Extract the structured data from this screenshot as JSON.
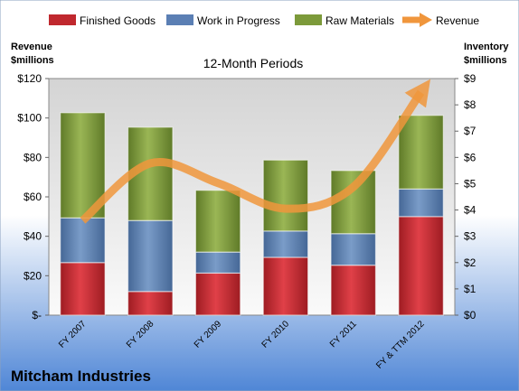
{
  "chart_data": {
    "type": "bar",
    "title": "12-Month Periods",
    "company": "Mitcham Industries",
    "left_axis_label": [
      "Revenue",
      "$millions"
    ],
    "right_axis_label": [
      "Inventory",
      "$millions"
    ],
    "categories": [
      "FY 2007",
      "FY 2008",
      "FY 2009",
      "FY 2010",
      "FY 2011",
      "FY & TTM 2012"
    ],
    "stacked": true,
    "series": [
      {
        "name": "Finished Goods",
        "color": "#c0282e",
        "axis": "right",
        "values": [
          2.0,
          0.9,
          1.6,
          2.2,
          1.9,
          3.75
        ]
      },
      {
        "name": "Work in Progress",
        "color": "#5b7fb4",
        "axis": "right",
        "values": [
          1.7,
          2.7,
          0.8,
          1.0,
          1.2,
          1.05
        ]
      },
      {
        "name": "Raw Materials",
        "color": "#7c9a3a",
        "axis": "right",
        "values": [
          4.0,
          3.55,
          2.35,
          2.7,
          2.4,
          2.8
        ]
      }
    ],
    "line_series": {
      "name": "Revenue",
      "color": "#f0963c",
      "axis": "left",
      "values": [
        48,
        77,
        67,
        54,
        65,
        113
      ]
    },
    "left_axis": {
      "min": 0,
      "max": 120,
      "step": 20,
      "tick_labels": [
        "$-",
        "$20",
        "$40",
        "$60",
        "$80",
        "$100",
        "$120"
      ]
    },
    "right_axis": {
      "min": 0,
      "max": 9,
      "step": 1,
      "tick_labels": [
        "$0",
        "$1",
        "$2",
        "$3",
        "$4",
        "$5",
        "$6",
        "$7",
        "$8",
        "$9"
      ]
    },
    "legend_position": "top"
  }
}
